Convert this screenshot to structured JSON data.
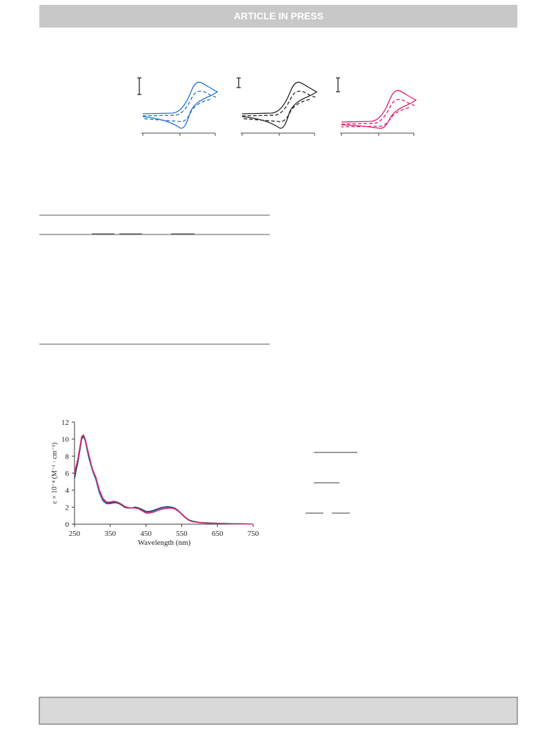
{
  "header": {
    "title": "ARTICLE IN PRESS"
  },
  "chart_data": {
    "type": "line",
    "xlabel": "Wavelength (nm)",
    "ylabel": "ε × 10⁻⁴ (M⁻¹ · cm⁻¹)",
    "x": [
      250,
      260,
      270,
      275,
      280,
      290,
      300,
      310,
      320,
      330,
      340,
      350,
      360,
      370,
      380,
      390,
      400,
      410,
      420,
      430,
      440,
      450,
      460,
      470,
      480,
      490,
      500,
      510,
      520,
      530,
      540,
      550,
      560,
      570,
      580,
      600,
      620,
      650,
      700,
      750
    ],
    "series": [
      {
        "color": "#3a7fd0",
        "values": [
          5.5,
          7.5,
          10.2,
          10.4,
          9.8,
          7.8,
          6.3,
          5.2,
          3.6,
          2.7,
          2.4,
          2.4,
          2.5,
          2.5,
          2.3,
          2.0,
          1.9,
          1.9,
          1.95,
          1.9,
          1.6,
          1.4,
          1.4,
          1.5,
          1.7,
          1.85,
          1.95,
          2.0,
          2.0,
          1.9,
          1.6,
          1.2,
          0.8,
          0.5,
          0.35,
          0.2,
          0.15,
          0.1,
          0.05,
          0.02
        ]
      },
      {
        "color": "#2a3a7a",
        "values": [
          5.4,
          7.4,
          10.0,
          10.3,
          9.9,
          8.0,
          6.5,
          5.4,
          3.9,
          2.9,
          2.5,
          2.5,
          2.6,
          2.5,
          2.3,
          2.0,
          1.9,
          1.9,
          2.0,
          1.9,
          1.7,
          1.5,
          1.5,
          1.6,
          1.75,
          1.9,
          2.0,
          2.05,
          2.0,
          1.9,
          1.6,
          1.2,
          0.8,
          0.5,
          0.35,
          0.2,
          0.15,
          0.1,
          0.05,
          0.02
        ]
      },
      {
        "color": "#e0306a",
        "values": [
          6.0,
          7.8,
          10.3,
          10.5,
          10.0,
          8.2,
          6.5,
          5.5,
          4.0,
          3.0,
          2.6,
          2.6,
          2.7,
          2.6,
          2.4,
          2.1,
          1.95,
          1.9,
          1.9,
          1.8,
          1.55,
          1.3,
          1.3,
          1.4,
          1.55,
          1.7,
          1.8,
          1.85,
          1.9,
          1.8,
          1.55,
          1.15,
          0.75,
          0.45,
          0.3,
          0.18,
          0.12,
          0.08,
          0.04,
          0.02
        ]
      }
    ],
    "xlim": [
      250,
      750
    ],
    "xticks": [
      250,
      350,
      450,
      550,
      650,
      750
    ],
    "ylim": [
      0,
      12
    ],
    "yticks": [
      0,
      2,
      4,
      6,
      8,
      10,
      12
    ]
  }
}
